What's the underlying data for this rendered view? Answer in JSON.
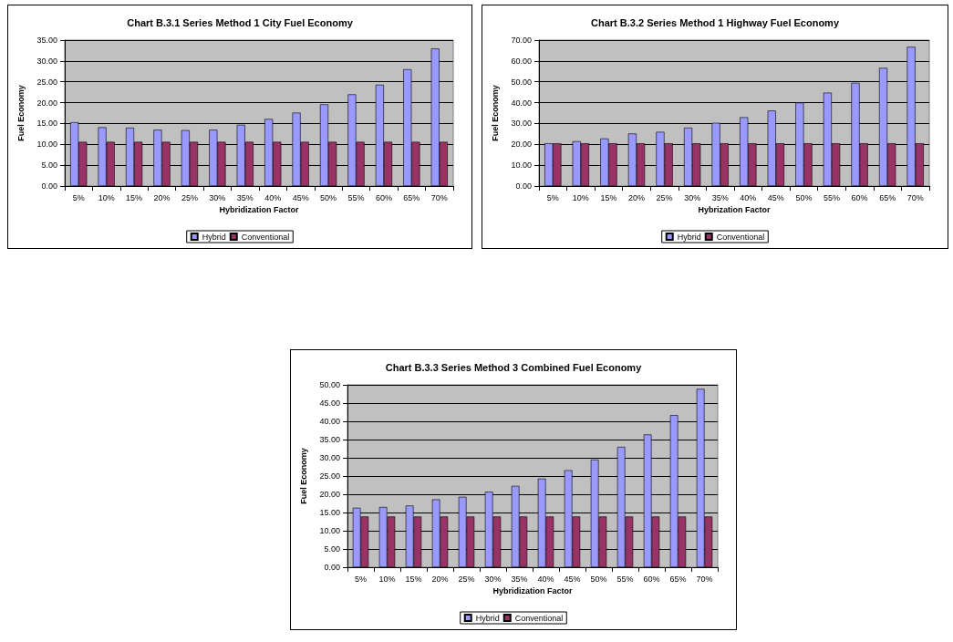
{
  "chart_data": [
    {
      "type": "bar",
      "title": "Chart B.3.1 Series Method 1 City Fuel Economy",
      "xlabel": "Hybridization Factor",
      "ylabel": "Fuel Economy",
      "categories": [
        "5%",
        "10%",
        "15%",
        "20%",
        "25%",
        "30%",
        "35%",
        "40%",
        "45%",
        "50%",
        "55%",
        "60%",
        "65%",
        "70%"
      ],
      "series": [
        {
          "name": "Hybrid",
          "color": "#9999ff",
          "values": [
            15.3,
            14.1,
            14.0,
            13.5,
            13.4,
            13.5,
            14.7,
            16.1,
            17.6,
            19.6,
            22.0,
            24.3,
            28.0,
            33.0
          ]
        },
        {
          "name": "Conventional",
          "color": "#993366",
          "values": [
            10.6,
            10.6,
            10.6,
            10.6,
            10.6,
            10.6,
            10.6,
            10.6,
            10.6,
            10.6,
            10.6,
            10.6,
            10.6,
            10.6
          ]
        }
      ],
      "ylim": [
        0,
        35
      ],
      "yticks": [
        {
          "value": 0,
          "label": "0.00"
        },
        {
          "value": 5,
          "label": "5.00"
        },
        {
          "value": 10,
          "label": "10.00"
        },
        {
          "value": 15,
          "label": "15.00"
        },
        {
          "value": 20,
          "label": "20.00"
        },
        {
          "value": 25,
          "label": "25.00"
        },
        {
          "value": 30,
          "label": "30.00"
        },
        {
          "value": 35,
          "label": "35.00"
        }
      ],
      "grid": "y",
      "legend": "bottom"
    },
    {
      "type": "bar",
      "title": "Chart B.3.2 Series Method 1 Highway Fuel Economy",
      "xlabel": "Hybrization Factor",
      "ylabel": "Fuel Economy",
      "categories": [
        "5%",
        "10%",
        "15%",
        "20%",
        "25%",
        "30%",
        "35%",
        "40%",
        "45%",
        "50%",
        "55%",
        "60%",
        "65%",
        "70%"
      ],
      "series": [
        {
          "name": "Hybrid",
          "color": "#9999ff",
          "values": [
            20.5,
            21.5,
            22.8,
            25.2,
            26.0,
            28.0,
            30.3,
            33.0,
            36.2,
            40.0,
            44.8,
            49.5,
            56.7,
            66.8
          ]
        },
        {
          "name": "Conventional",
          "color": "#993366",
          "values": [
            20.5,
            20.5,
            20.5,
            20.5,
            20.5,
            20.5,
            20.5,
            20.5,
            20.5,
            20.5,
            20.5,
            20.5,
            20.5,
            20.5
          ]
        }
      ],
      "ylim": [
        0,
        70
      ],
      "yticks": [
        {
          "value": 0,
          "label": "0.00"
        },
        {
          "value": 10,
          "label": "10.00"
        },
        {
          "value": 20,
          "label": "20.00"
        },
        {
          "value": 30,
          "label": "30.00"
        },
        {
          "value": 40,
          "label": "40.00"
        },
        {
          "value": 50,
          "label": "50.00"
        },
        {
          "value": 60,
          "label": "60.00"
        },
        {
          "value": 70,
          "label": "70.00"
        }
      ],
      "grid": "y",
      "legend": "bottom"
    },
    {
      "type": "bar",
      "title": "Chart B.3.3 Series Method 3 Combined Fuel Economy",
      "xlabel": "Hybridization Factor",
      "ylabel": "Fuel Economy",
      "categories": [
        "5%",
        "10%",
        "15%",
        "20%",
        "25%",
        "30%",
        "35%",
        "40%",
        "45%",
        "50%",
        "55%",
        "60%",
        "65%",
        "70%"
      ],
      "series": [
        {
          "name": "Hybrid",
          "color": "#9999ff",
          "values": [
            16.3,
            16.5,
            16.9,
            18.6,
            19.3,
            20.7,
            22.3,
            24.3,
            26.6,
            29.5,
            33.0,
            36.4,
            41.7,
            48.9
          ]
        },
        {
          "name": "Conventional",
          "color": "#993366",
          "values": [
            13.9,
            13.9,
            13.9,
            13.9,
            13.9,
            13.9,
            13.9,
            13.9,
            13.9,
            13.9,
            13.9,
            13.9,
            13.9,
            13.9
          ]
        }
      ],
      "ylim": [
        0,
        50
      ],
      "yticks": [
        {
          "value": 0,
          "label": "0.00"
        },
        {
          "value": 5,
          "label": "5.00"
        },
        {
          "value": 10,
          "label": "10.00"
        },
        {
          "value": 15,
          "label": "15.00"
        },
        {
          "value": 20,
          "label": "20.00"
        },
        {
          "value": 25,
          "label": "25.00"
        },
        {
          "value": 30,
          "label": "30.00"
        },
        {
          "value": 35,
          "label": "35.00"
        },
        {
          "value": 40,
          "label": "40.00"
        },
        {
          "value": 45,
          "label": "45.00"
        },
        {
          "value": 50,
          "label": "50.00"
        }
      ],
      "grid": "y",
      "legend": "bottom"
    }
  ]
}
